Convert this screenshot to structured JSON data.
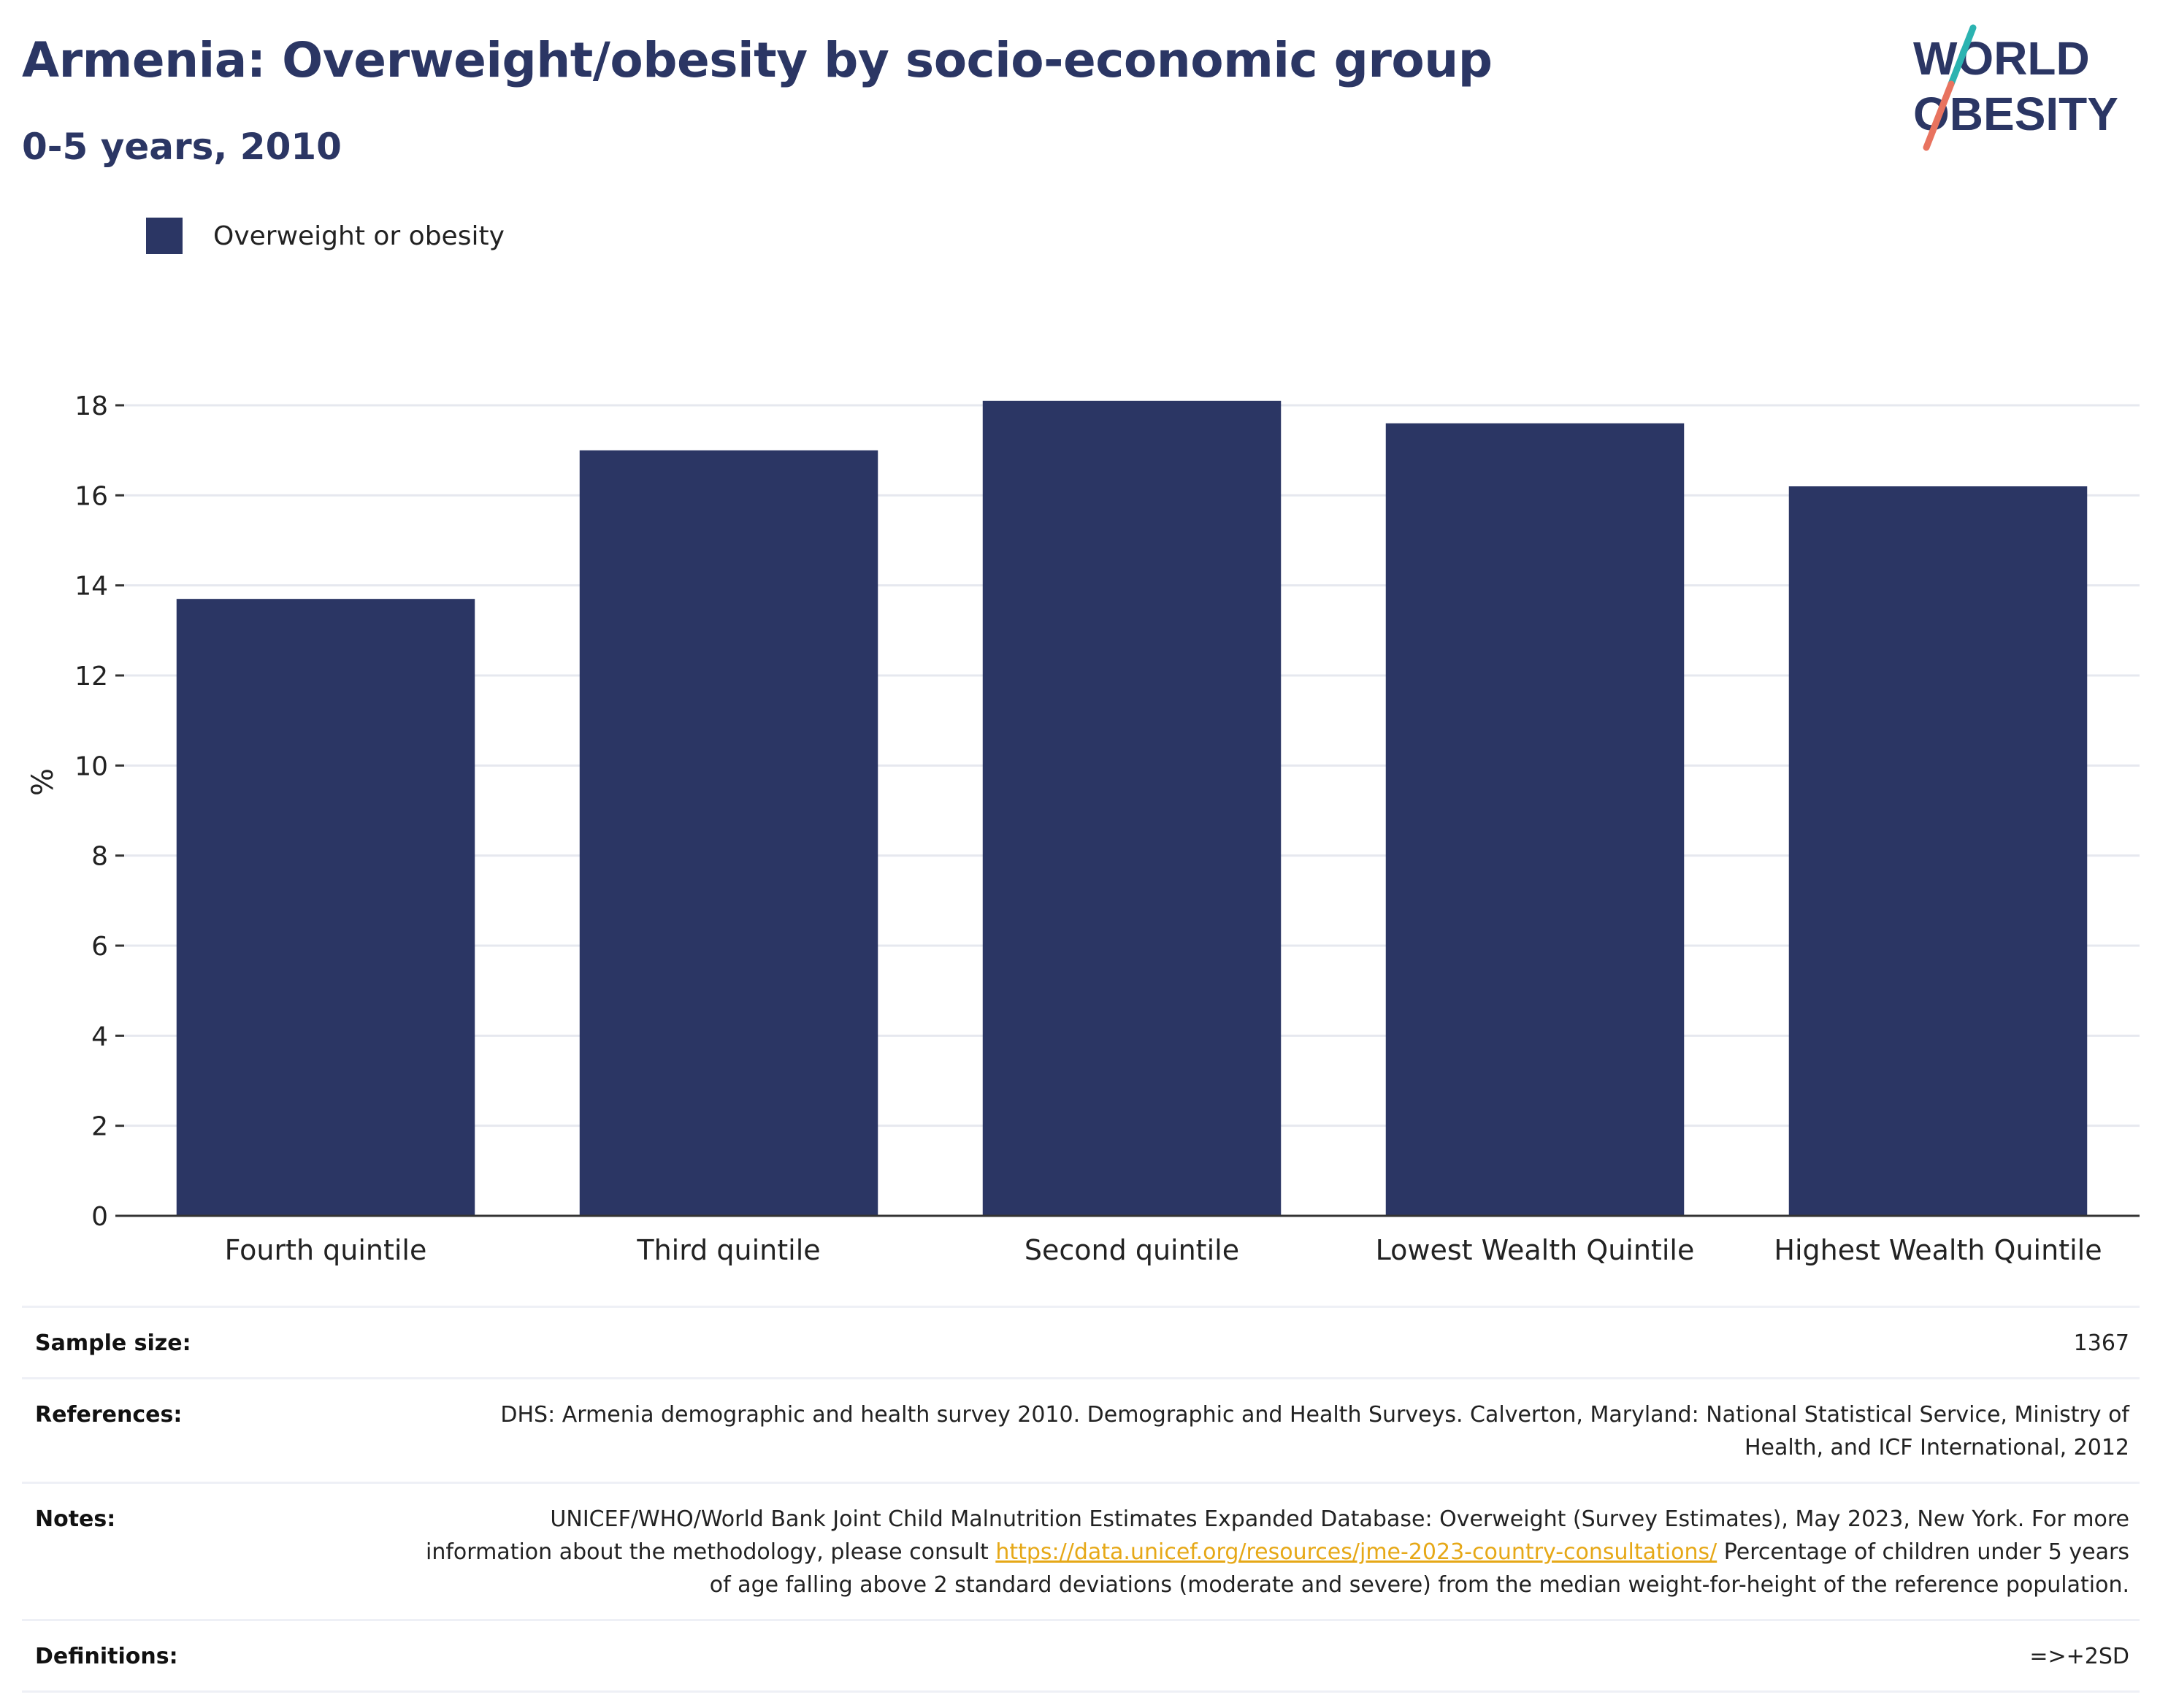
{
  "header": {
    "title": "Armenia: Overweight/obesity by socio-economic group",
    "subtitle": "0-5 years, 2010"
  },
  "logo": {
    "line1": "WORLD",
    "line2": "OBESITY",
    "colors": {
      "text": "#2b3664",
      "slash_top": "#2bb3b1",
      "slash_bottom": "#e8735f"
    }
  },
  "colors": {
    "bar": "#2b3664",
    "grid": "#e6e8ef",
    "axis": "#333333",
    "link": "#e6a817"
  },
  "chart_data": {
    "type": "bar",
    "ylabel": "%",
    "xlabel": "",
    "ylim": [
      0,
      18
    ],
    "yticks": [
      0,
      2,
      4,
      6,
      8,
      10,
      12,
      14,
      16,
      18
    ],
    "grid": true,
    "legend_position": "top-left",
    "categories": [
      "Fourth quintile",
      "Third quintile",
      "Second quintile",
      "Lowest Wealth Quintile",
      "Highest Wealth Quintile"
    ],
    "series": [
      {
        "name": "Overweight or obesity",
        "values": [
          13.7,
          17.0,
          18.1,
          17.6,
          16.2
        ]
      }
    ]
  },
  "info": {
    "sample_size": {
      "label": "Sample size:",
      "value": "1367"
    },
    "references": {
      "label": "References:",
      "value": "DHS: Armenia demographic and health survey 2010. Demographic and Health Surveys. Calverton, Maryland: National Statistical Service, Ministry of Health, and ICF International, 2012"
    },
    "notes": {
      "label": "Notes:",
      "text_before": "UNICEF/WHO/World Bank Joint Child Malnutrition Estimates Expanded Database: Overweight (Survey Estimates), May 2023, New York. For more information about the methodology, please consult ",
      "link": "https://data.unicef.org/resources/jme-2023-country-consultations/",
      "text_after": " Percentage of children under 5 years of age falling above 2 standard deviations (moderate and severe) from the median weight-for-height of the reference population."
    },
    "definitions": {
      "label": "Definitions:",
      "value": "=>+2SD"
    }
  }
}
